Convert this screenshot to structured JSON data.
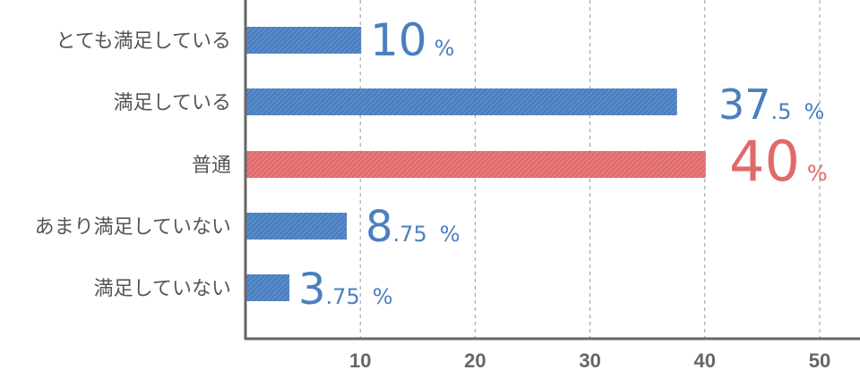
{
  "chart_data": {
    "type": "bar",
    "orientation": "horizontal",
    "categories": [
      "とても満足している",
      "満足している",
      "普通",
      "あまり満足していない",
      "満足していない"
    ],
    "values": [
      10,
      37.5,
      40,
      8.75,
      3.75
    ],
    "value_labels": [
      {
        "main": "10",
        "frac": "",
        "unit": "%"
      },
      {
        "main": "37",
        "frac": ".5",
        "unit": "%"
      },
      {
        "main": "40",
        "frac": "",
        "unit": "%"
      },
      {
        "main": "8",
        "frac": ".75",
        "unit": "%"
      },
      {
        "main": "3",
        "frac": ".75",
        "unit": "%"
      }
    ],
    "highlight_index": 2,
    "x_ticks": [
      "10",
      "20",
      "30",
      "40",
      "50"
    ],
    "xlim": [
      0,
      52
    ],
    "grid": true,
    "colors": {
      "bar": "#4a7fc1",
      "bar_highlight": "#e06a6a",
      "label": "#4a7fc1",
      "label_highlight": "#e06a6a",
      "axis": "#666666",
      "grid": "#999999"
    }
  }
}
